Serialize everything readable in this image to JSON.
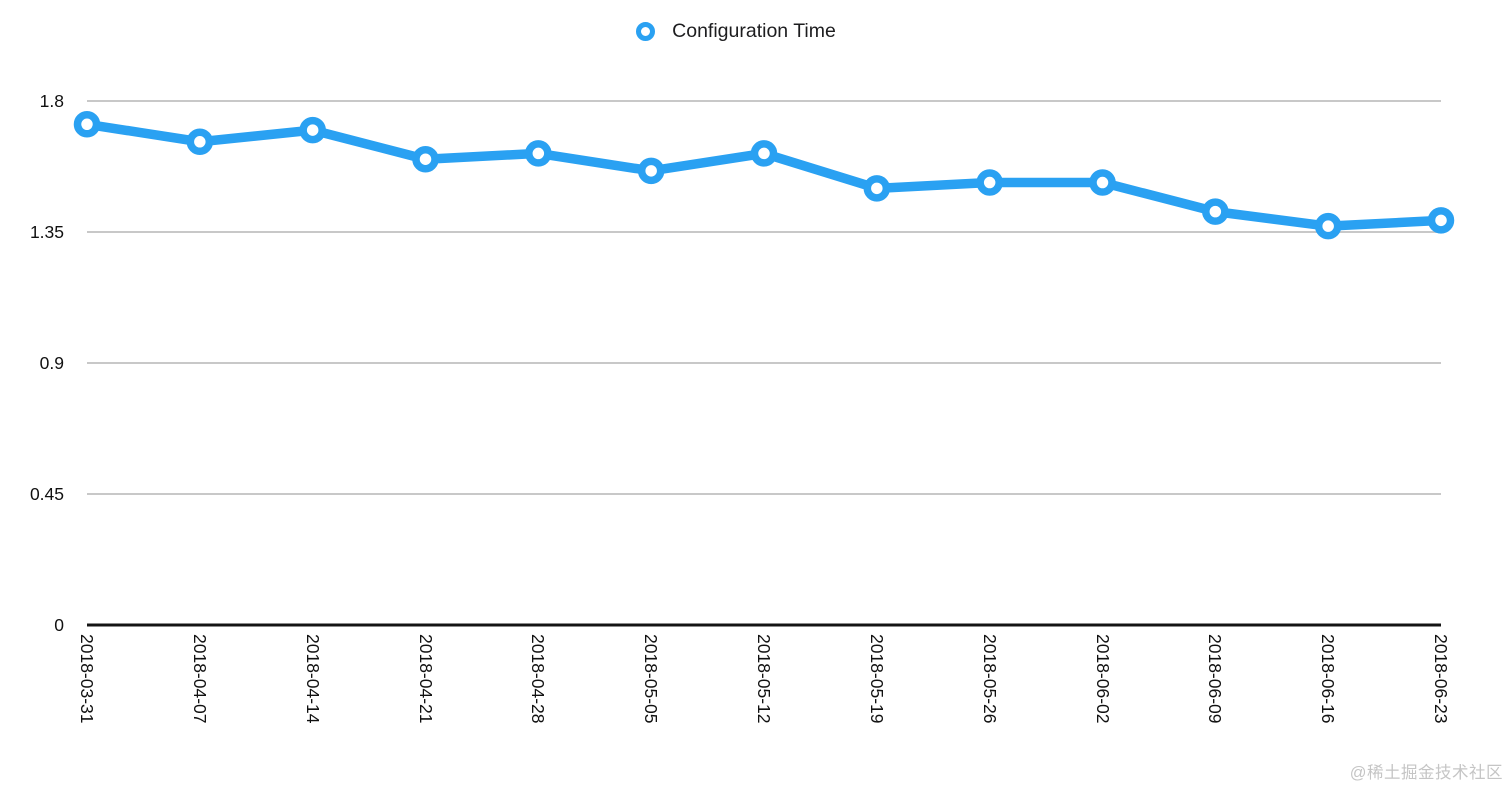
{
  "legend": {
    "label": "Configuration Time"
  },
  "watermark": "@稀土掘金技术社区",
  "colors": {
    "line": "#2aa1f2",
    "marker_fill": "#ffffff",
    "grid": "#c8c8c8",
    "axis": "#141414",
    "tick_text": "#111111",
    "watermark_text": "#c5c5c5"
  },
  "chart_data": {
    "type": "line",
    "title": "Configuration Time",
    "xlabel": "",
    "ylabel": "",
    "categories": [
      "2018-03-31",
      "2018-04-07",
      "2018-04-14",
      "2018-04-21",
      "2018-04-28",
      "2018-05-05",
      "2018-05-12",
      "2018-05-19",
      "2018-05-26",
      "2018-06-02",
      "2018-06-09",
      "2018-06-16",
      "2018-06-23"
    ],
    "series": [
      {
        "name": "Configuration Time",
        "values": [
          1.72,
          1.66,
          1.7,
          1.6,
          1.62,
          1.56,
          1.62,
          1.5,
          1.52,
          1.52,
          1.42,
          1.37,
          1.39
        ]
      }
    ],
    "y_ticks": [
      0,
      0.45,
      0.9,
      1.35,
      1.8
    ],
    "ylim": [
      0,
      1.8
    ],
    "grid": true,
    "legend_position": "top-center",
    "marker": "donut"
  }
}
